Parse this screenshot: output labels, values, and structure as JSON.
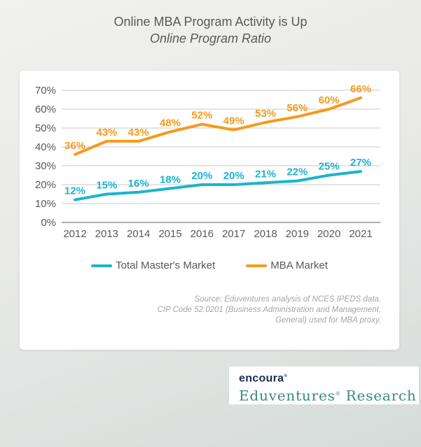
{
  "title": {
    "line1": "Online MBA Program Activity is Up",
    "line2": "Online Program Ratio"
  },
  "chart_data": {
    "type": "line",
    "title": "Online MBA Program Activity is Up — Online Program Ratio",
    "categories": [
      "2012",
      "2013",
      "2014",
      "2015",
      "2016",
      "2017",
      "2018",
      "2019",
      "2020",
      "2021"
    ],
    "series": [
      {
        "name": "Total Master's Market",
        "values": [
          12,
          15,
          16,
          18,
          20,
          20,
          21,
          22,
          25,
          27
        ],
        "color": "#1cb4cd"
      },
      {
        "name": "MBA Market",
        "values": [
          36,
          43,
          43,
          48,
          52,
          49,
          53,
          56,
          60,
          66
        ],
        "color": "#f8991d"
      }
    ],
    "xlabel": "",
    "ylabel": "",
    "ylim": [
      0,
      70
    ],
    "ytick_step": 10,
    "ytick_suffix": "%",
    "grid": true,
    "data_labels": true,
    "data_label_suffix": "%",
    "legend_position": "bottom"
  },
  "colors": {
    "gridline": "#c8c8c8",
    "axis_line": "#7f7f7f",
    "tick_text": "#595959",
    "title_text": "#58595b",
    "source_text": "#a5a5a5",
    "encoura_navy": "#1d2b52",
    "eduventures_teal": "#3a8a7b"
  },
  "source_note": {
    "line1": "Source: Eduventures analysis of NCES IPEDS data.",
    "line2": "CIP Code 52.0201 (Business Administration and Management,",
    "line3": "General) used for MBA proxy."
  },
  "logo": {
    "encoura": "encoura",
    "encoura_mark": "®",
    "eduventures": "Eduventures",
    "eduventures_mark": "®",
    "research": " Research"
  }
}
